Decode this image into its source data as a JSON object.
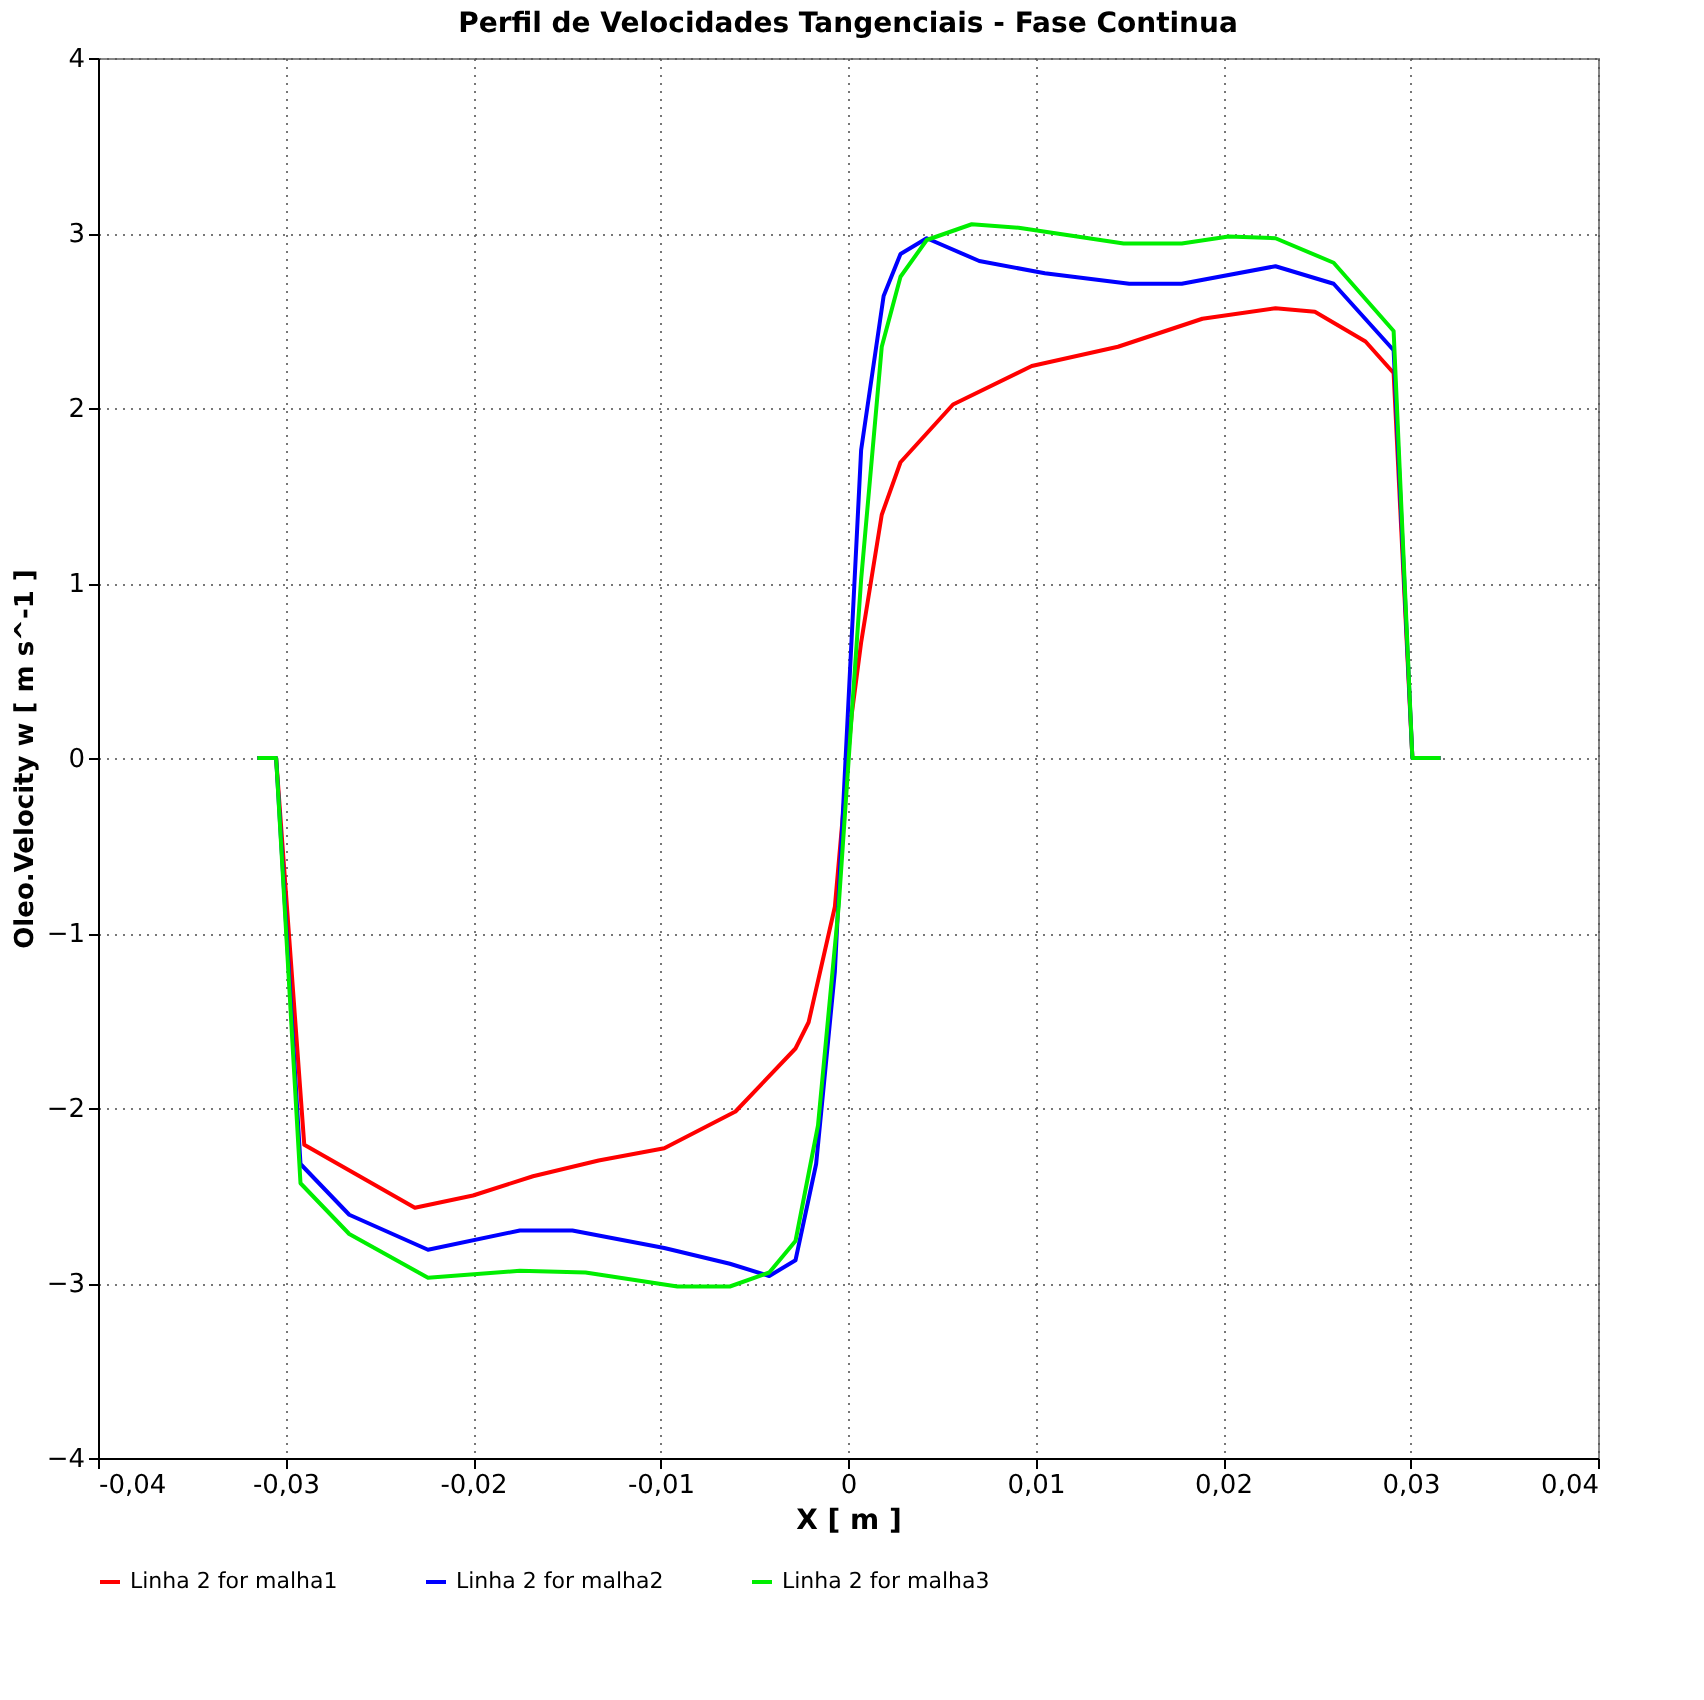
{
  "chart_data": {
    "type": "line",
    "title": "Perfil de Velocidades Tangenciais - Fase Continua",
    "xlabel": "X [ m ]",
    "ylabel": "Oleo.Velocity w [ m s^-1 ]",
    "xlim": [
      -0.04,
      0.04
    ],
    "ylim": [
      -4,
      4
    ],
    "xticks": [
      {
        "value": -0.04,
        "label": "-0,04"
      },
      {
        "value": -0.03,
        "label": "-0,03"
      },
      {
        "value": -0.02,
        "label": "-0,02"
      },
      {
        "value": -0.01,
        "label": "-0,01"
      },
      {
        "value": 0,
        "label": "0"
      },
      {
        "value": 0.01,
        "label": "0,01"
      },
      {
        "value": 0.02,
        "label": "0,02"
      },
      {
        "value": 0.03,
        "label": "0,03"
      },
      {
        "value": 0.04,
        "label": "0,04"
      }
    ],
    "yticks": [
      -4,
      -3,
      -2,
      -1,
      0,
      1,
      2,
      3,
      4
    ],
    "grid": true,
    "legend": "bottom",
    "marker": "none",
    "line_style": "solid",
    "series": [
      {
        "name": "Linha 2 for malha1",
        "color": "#ff0000",
        "x": [
          -0.0315,
          -0.0305,
          -0.029,
          -0.0231,
          -0.02,
          -0.0168,
          -0.0133,
          -0.0098,
          -0.006,
          -0.0028,
          -0.0021,
          -0.0007,
          0.0002,
          0.0007,
          0.0018,
          0.0028,
          0.0056,
          0.0098,
          0.0144,
          0.0189,
          0.0228,
          0.0249,
          0.0276,
          0.0291,
          0.0301,
          0.0316
        ],
        "values": [
          0,
          0,
          -2.21,
          -2.57,
          -2.5,
          -2.39,
          -2.3,
          -2.23,
          -2.02,
          -1.66,
          -1.51,
          -0.85,
          0.25,
          0.66,
          1.39,
          1.69,
          2.02,
          2.24,
          2.35,
          2.51,
          2.57,
          2.55,
          2.38,
          2.2,
          0,
          0
        ]
      },
      {
        "name": "Linha 2 for malha2",
        "color": "#0000ff",
        "x": [
          -0.0315,
          -0.0305,
          -0.0292,
          -0.0266,
          -0.0224,
          -0.0175,
          -0.0147,
          -0.0098,
          -0.0063,
          -0.0042,
          -0.0028,
          -0.0017,
          -0.0007,
          0.0007,
          0.0019,
          0.0028,
          0.0042,
          0.007,
          0.0105,
          0.015,
          0.0178,
          0.0228,
          0.0259,
          0.0291,
          0.0301,
          0.0316
        ],
        "values": [
          0,
          0,
          -2.32,
          -2.61,
          -2.81,
          -2.7,
          -2.7,
          -2.8,
          -2.89,
          -2.96,
          -2.87,
          -2.32,
          -1.22,
          1.76,
          2.64,
          2.88,
          2.97,
          2.84,
          2.77,
          2.71,
          2.71,
          2.81,
          2.71,
          2.33,
          0,
          0
        ]
      },
      {
        "name": "Linha 2 for malha3",
        "color": "#00ee00",
        "x": [
          -0.0315,
          -0.0305,
          -0.0292,
          -0.0266,
          -0.0224,
          -0.0175,
          -0.014,
          -0.0091,
          -0.0063,
          -0.0042,
          -0.0028,
          -0.0016,
          -0.0005,
          0.0002,
          0.0007,
          0.0018,
          0.0028,
          0.0042,
          0.0066,
          0.0091,
          0.0147,
          0.0178,
          0.0203,
          0.0228,
          0.0259,
          0.0291,
          0.0301,
          0.0316
        ],
        "values": [
          0,
          0,
          -2.43,
          -2.72,
          -2.97,
          -2.93,
          -2.94,
          -3.02,
          -3.02,
          -2.94,
          -2.76,
          -2.1,
          -0.85,
          0.25,
          1.02,
          2.35,
          2.75,
          2.96,
          3.05,
          3.03,
          2.94,
          2.94,
          2.98,
          2.97,
          2.83,
          2.44,
          0,
          0
        ]
      }
    ]
  }
}
